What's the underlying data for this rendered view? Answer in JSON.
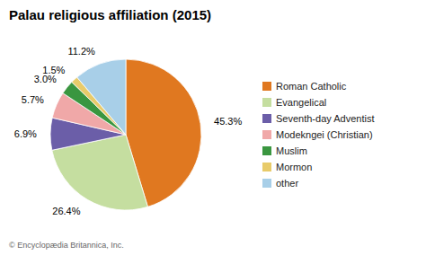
{
  "chart_data": {
    "type": "pie",
    "title": "Palau religious affiliation (2015)",
    "categories": [
      "Roman Catholic",
      "Evangelical",
      "Seventh-day Adventist",
      "Modekngei (Christian)",
      "Muslim",
      "Mormon",
      "other"
    ],
    "values": [
      45.3,
      26.4,
      6.9,
      5.7,
      3.0,
      1.5,
      11.2
    ],
    "value_labels": [
      "45.3%",
      "26.4%",
      "6.9%",
      "5.7%",
      "3.0%",
      "1.5%",
      "11.2%"
    ],
    "colors": [
      "#e07820",
      "#c5dea0",
      "#6b5ea8",
      "#f0a8a8",
      "#3a9640",
      "#e8cb6a",
      "#a8cfe8"
    ],
    "data_labels": true,
    "legend": "right",
    "annotations": [
      "© Encyclopædia Britannica, Inc."
    ]
  }
}
